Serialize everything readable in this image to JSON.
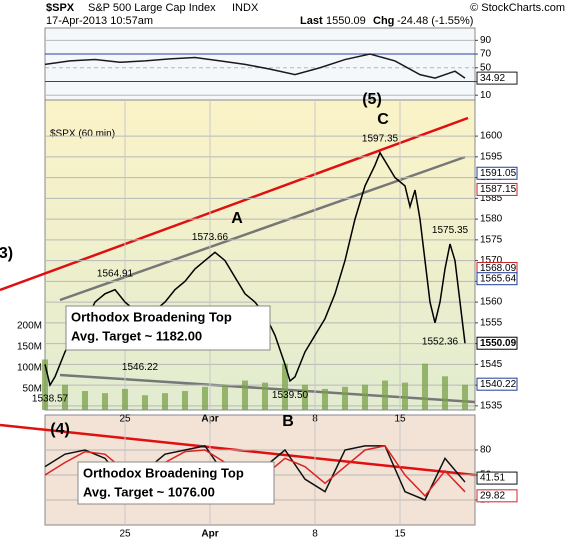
{
  "header": {
    "symbol": "$SPX",
    "name": "S&P 500 Large Cap Index",
    "exchange": "INDX",
    "source": "© StockCharts.com",
    "date": "17-Apr-2013 10:57am",
    "last_label": "Last",
    "change_label": "Chg",
    "change": "-24.48 (-1.55%)"
  },
  "annotations": [
    "(5)",
    "C",
    "A",
    "B",
    "(4)",
    "3)"
  ],
  "boxes": [
    [
      "Orthodox Broadening Top",
      "Avg. Target ~ 1182.00"
    ],
    [
      "Orthodox Broadening Top",
      "Avg. Target ~ 1076.00"
    ]
  ],
  "chart_data": [
    {
      "type": "line",
      "xlim": [
        0,
        86
      ],
      "ylim": [
        3,
        108
      ],
      "yticks": [
        90,
        70,
        50,
        30,
        10
      ],
      "grid": true,
      "x": [
        0,
        5,
        10,
        15,
        20,
        25,
        30,
        35,
        40,
        45,
        50,
        55,
        60,
        65,
        70,
        75,
        78,
        82,
        84
      ],
      "series": [
        {
          "color": "#1a1a1a",
          "values": [
            55,
            60,
            62,
            58,
            60,
            63,
            65,
            60,
            55,
            48,
            40,
            50,
            62,
            70,
            60,
            40,
            35,
            45,
            34.92
          ]
        }
      ]
    },
    {
      "type": "line",
      "label": "$SPX (60 min)",
      "xlim": [
        0,
        86
      ],
      "ylim": [
        1534,
        1608.7
      ],
      "yticks": [
        1535,
        1540,
        1545,
        1550,
        1555,
        1560,
        1565,
        1570,
        1575,
        1580,
        1585,
        1590,
        1595,
        1600
      ],
      "grid": true,
      "xticks": [
        {
          "value": 16,
          "label": "25"
        },
        {
          "value": 33,
          "label": "Apr"
        },
        {
          "value": 54,
          "label": "8"
        },
        {
          "value": 71,
          "label": "15"
        }
      ],
      "x": [
        0,
        1,
        2,
        4,
        6,
        8,
        10,
        12,
        14,
        16,
        18,
        20,
        22,
        24,
        26,
        28,
        30,
        32,
        34,
        36,
        38,
        40,
        42,
        44,
        46,
        48,
        49,
        50,
        52,
        54,
        56,
        58,
        60,
        62,
        64,
        66,
        67,
        68,
        70,
        72,
        73,
        74,
        75,
        76,
        77,
        78,
        79,
        80,
        81,
        82,
        83,
        84
      ],
      "series": [
        {
          "color": "#000000",
          "values": [
            1545,
            1540,
            1542,
            1548,
            1553,
            1555,
            1560,
            1562,
            1563,
            1560,
            1558,
            1556,
            1558,
            1560,
            1563,
            1565,
            1568,
            1570,
            1572,
            1570,
            1566,
            1562,
            1560,
            1557,
            1552,
            1545,
            1541,
            1542,
            1548,
            1552,
            1556,
            1562,
            1570,
            1580,
            1588,
            1593,
            1596,
            1594,
            1590,
            1588,
            1583,
            1587,
            1580,
            1570,
            1560,
            1555,
            1560,
            1568,
            1574,
            1570,
            1560,
            1550.09
          ]
        }
      ],
      "price_labels": {
        "x": [
          67,
          33,
          14,
          81,
          79,
          19,
          49,
          1
        ],
        "values": [
          1597.35,
          1573.66,
          1564.91,
          1575.35,
          1552.36,
          1546.22,
          1539.5,
          1538.57
        ],
        "value_labels": [
          "1597.35",
          "1573.66",
          "1564.91",
          "1575.35",
          "1552.36",
          "1546.22",
          "1539.50",
          "1538.57"
        ]
      },
      "right_labels": {
        "values": [
          1591.05,
          1587.15,
          1568.09,
          1565.64,
          1540.22
        ],
        "colors": [
          "#1f3d9a",
          "#cc2222",
          "#cc2222",
          "#1f3d9a",
          "#1f3d9a"
        ]
      },
      "volume": {
        "ylim": [
          0,
          736000000
        ],
        "yticks": [
          {
            "value": 200000000,
            "label": "200M"
          },
          {
            "value": 150000000,
            "label": "150M"
          },
          {
            "value": 100000000,
            "label": "100M"
          },
          {
            "value": 50000000,
            "label": "50M"
          }
        ],
        "color": "#7aa04a",
        "x": [
          0,
          4,
          8,
          12,
          16,
          20,
          24,
          28,
          32,
          36,
          40,
          44,
          48,
          52,
          56,
          60,
          64,
          68,
          72,
          76,
          80,
          84
        ],
        "values": [
          120000000,
          60000000,
          45000000,
          40000000,
          50000000,
          35000000,
          40000000,
          45000000,
          55000000,
          60000000,
          70000000,
          65000000,
          110000000,
          60000000,
          50000000,
          55000000,
          60000000,
          70000000,
          65000000,
          110000000,
          80000000,
          60000000
        ]
      }
    },
    {
      "type": "line",
      "xlim": [
        0,
        86
      ],
      "ylim": [
        -10,
        122
      ],
      "yticks": [
        80,
        50,
        20
      ],
      "grid": true,
      "xticks": [
        {
          "value": 16,
          "label": "25"
        },
        {
          "value": 33,
          "label": "Apr"
        },
        {
          "value": 54,
          "label": "8"
        },
        {
          "value": 71,
          "label": "15"
        }
      ],
      "x": [
        0,
        4,
        8,
        12,
        16,
        20,
        24,
        28,
        32,
        36,
        40,
        44,
        48,
        52,
        56,
        60,
        64,
        68,
        72,
        76,
        80,
        84
      ],
      "series": [
        {
          "color": "#111111",
          "values": [
            60,
            75,
            80,
            70,
            40,
            55,
            75,
            80,
            85,
            50,
            30,
            60,
            80,
            45,
            30,
            80,
            85,
            85,
            30,
            20,
            70,
            41.51
          ]
        },
        {
          "color": "#dd2222",
          "values": [
            50,
            65,
            78,
            75,
            55,
            50,
            65,
            78,
            80,
            65,
            40,
            50,
            70,
            60,
            40,
            60,
            80,
            85,
            50,
            25,
            55,
            29.82
          ]
        }
      ]
    }
  ]
}
